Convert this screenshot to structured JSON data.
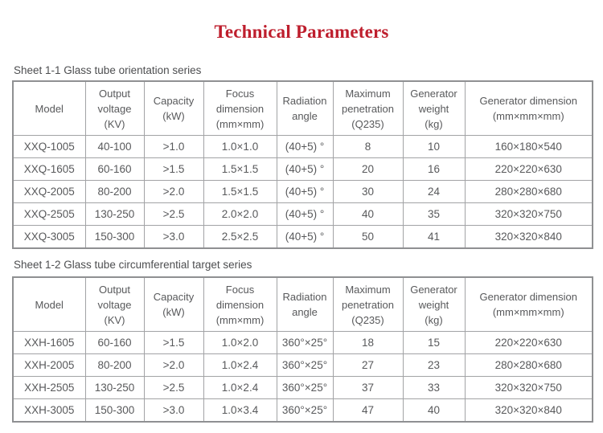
{
  "page": {
    "title": "Technical Parameters"
  },
  "colors": {
    "title_text": "#be1e2d",
    "body_text": "#58595b",
    "table_border": "#a2a3a5",
    "table_outer_border": "#8f9092",
    "background": "#ffffff"
  },
  "tables": [
    {
      "caption": "Sheet 1-1 Glass tube orientation series",
      "headers": [
        "Model",
        "Output\nvoltage\n(KV)",
        "Capacity\n(kW)",
        "Focus\ndimension\n(mm×mm)",
        "Radiation\nangle",
        "Maximum\npenetration\n(Q235)",
        "Generator\nweight\n(kg)",
        "Generator dimension\n(mm×mm×mm)"
      ],
      "rows": [
        [
          "XXQ-1005",
          "40-100",
          ">1.0",
          "1.0×1.0",
          "(40+5) °",
          "8",
          "10",
          "160×180×540"
        ],
        [
          "XXQ-1605",
          "60-160",
          ">1.5",
          "1.5×1.5",
          "(40+5) °",
          "20",
          "16",
          "220×220×630"
        ],
        [
          "XXQ-2005",
          "80-200",
          ">2.0",
          "1.5×1.5",
          "(40+5) °",
          "30",
          "24",
          "280×280×680"
        ],
        [
          "XXQ-2505",
          "130-250",
          ">2.5",
          "2.0×2.0",
          "(40+5) °",
          "40",
          "35",
          "320×320×750"
        ],
        [
          "XXQ-3005",
          "150-300",
          ">3.0",
          "2.5×2.5",
          "(40+5) °",
          "50",
          "41",
          "320×320×840"
        ]
      ]
    },
    {
      "caption": "Sheet 1-2 Glass tube circumferential target series",
      "headers": [
        "Model",
        "Output\nvoltage\n(KV)",
        "Capacity\n(kW)",
        "Focus\ndimension\n(mm×mm)",
        "Radiation\nangle",
        "Maximum\npenetration\n(Q235)",
        "Generator\nweight\n(kg)",
        "Generator dimension\n(mm×mm×mm)"
      ],
      "rows": [
        [
          "XXH-1605",
          "60-160",
          ">1.5",
          "1.0×2.0",
          "360°×25°",
          "18",
          "15",
          "220×220×630"
        ],
        [
          "XXH-2005",
          "80-200",
          ">2.0",
          "1.0×2.4",
          "360°×25°",
          "27",
          "23",
          "280×280×680"
        ],
        [
          "XXH-2505",
          "130-250",
          ">2.5",
          "1.0×2.4",
          "360°×25°",
          "37",
          "33",
          "320×320×750"
        ],
        [
          "XXH-3005",
          "150-300",
          ">3.0",
          "1.0×3.4",
          "360°×25°",
          "47",
          "40",
          "320×320×840"
        ]
      ]
    }
  ]
}
